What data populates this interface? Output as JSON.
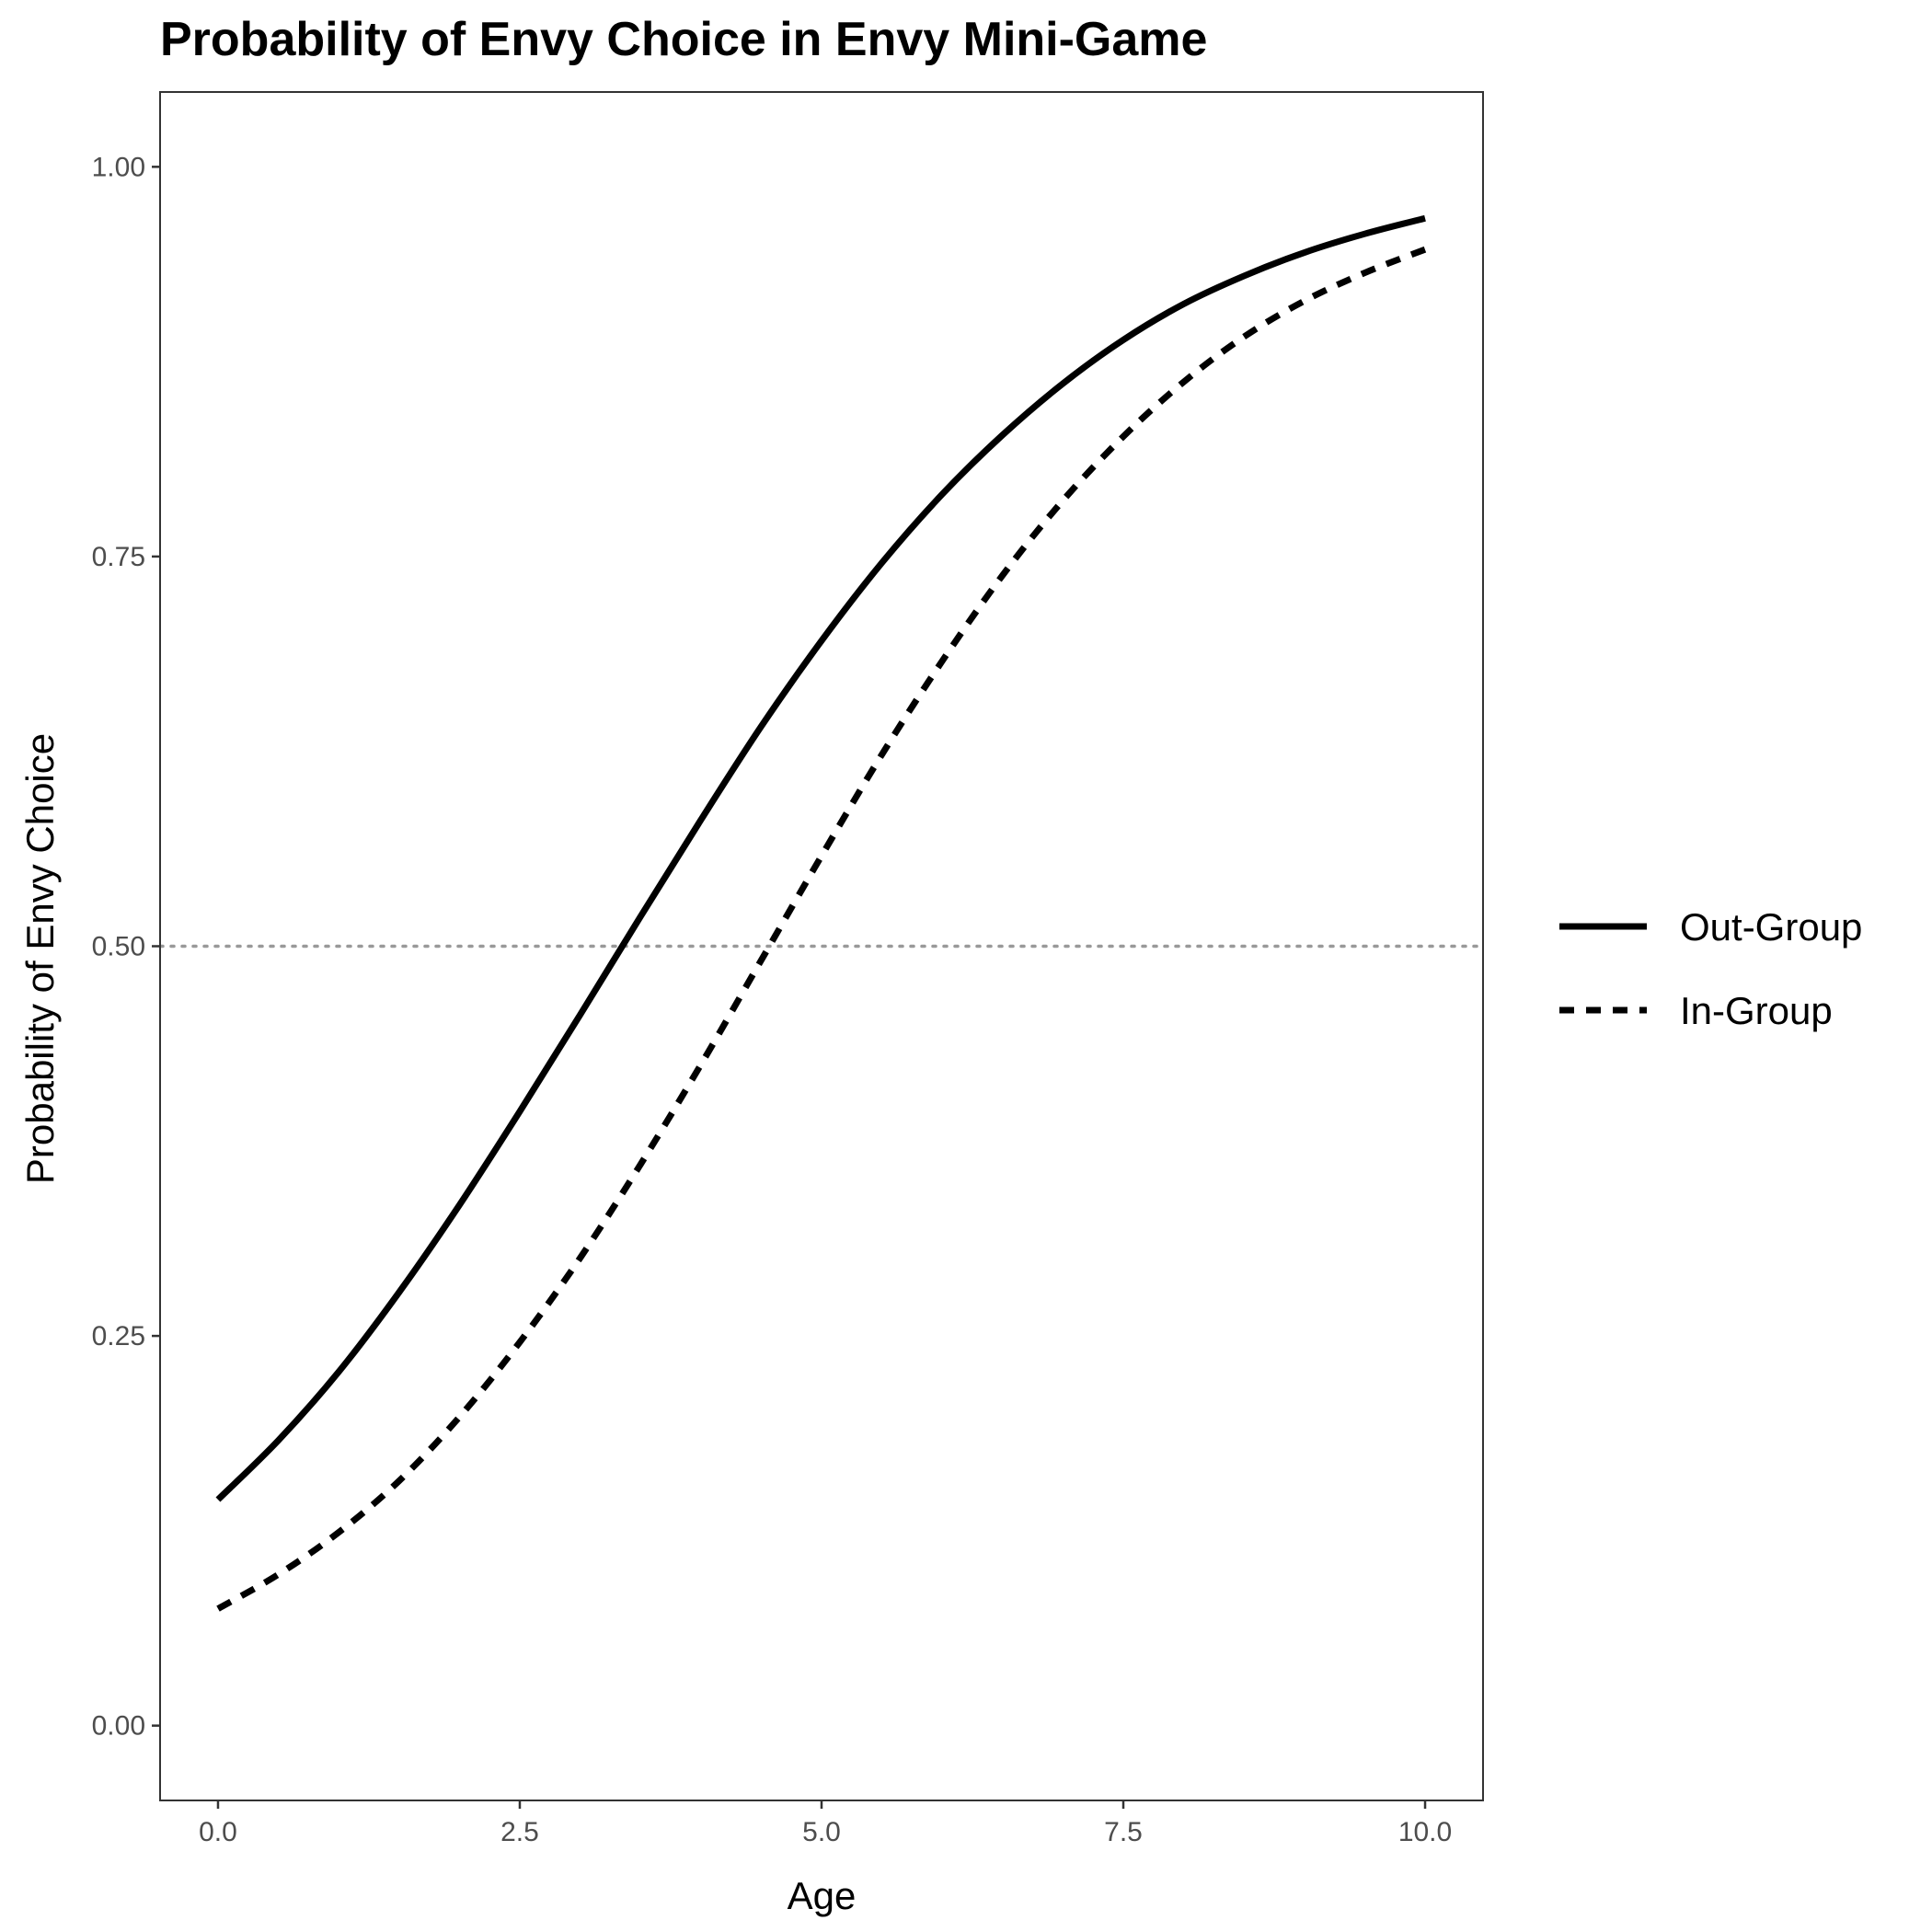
{
  "chart_data": {
    "type": "line",
    "title": "Probability of Envy Choice in Envy Mini-Game",
    "xlabel": "Age",
    "ylabel": "Probability of Envy Choice",
    "xlim": [
      -0.48,
      10.48
    ],
    "ylim": [
      -0.048,
      1.048
    ],
    "x_ticks": [
      0.0,
      2.5,
      5.0,
      7.5,
      10.0
    ],
    "x_tick_labels": [
      "0.0",
      "2.5",
      "5.0",
      "7.5",
      "10.0"
    ],
    "y_ticks": [
      0.0,
      0.25,
      0.5,
      0.75,
      1.0
    ],
    "y_tick_labels": [
      "0.00",
      "0.25",
      "0.50",
      "0.75",
      "1.00"
    ],
    "reference_line": {
      "y": 0.5,
      "style": "dotted",
      "color": "#999999"
    },
    "grid": false,
    "legend_position": "right",
    "x": [
      0,
      0.5,
      1,
      1.5,
      2,
      2.5,
      3,
      3.5,
      4,
      4.5,
      5,
      5.5,
      6,
      6.5,
      7,
      7.5,
      8,
      8.5,
      9,
      9.5,
      10
    ],
    "series": [
      {
        "name": "Out-Group",
        "line_style": "solid",
        "color": "#000000",
        "values": [
          0.145,
          0.183,
          0.227,
          0.278,
          0.334,
          0.394,
          0.456,
          0.519,
          0.581,
          0.641,
          0.696,
          0.746,
          0.79,
          0.828,
          0.861,
          0.889,
          0.912,
          0.93,
          0.945,
          0.957,
          0.967
        ]
      },
      {
        "name": "In-Group",
        "line_style": "dashed",
        "color": "#000000",
        "values": [
          0.075,
          0.097,
          0.124,
          0.157,
          0.198,
          0.246,
          0.3,
          0.36,
          0.424,
          0.491,
          0.558,
          0.623,
          0.683,
          0.738,
          0.786,
          0.827,
          0.862,
          0.891,
          0.914,
          0.932,
          0.947
        ]
      }
    ]
  }
}
